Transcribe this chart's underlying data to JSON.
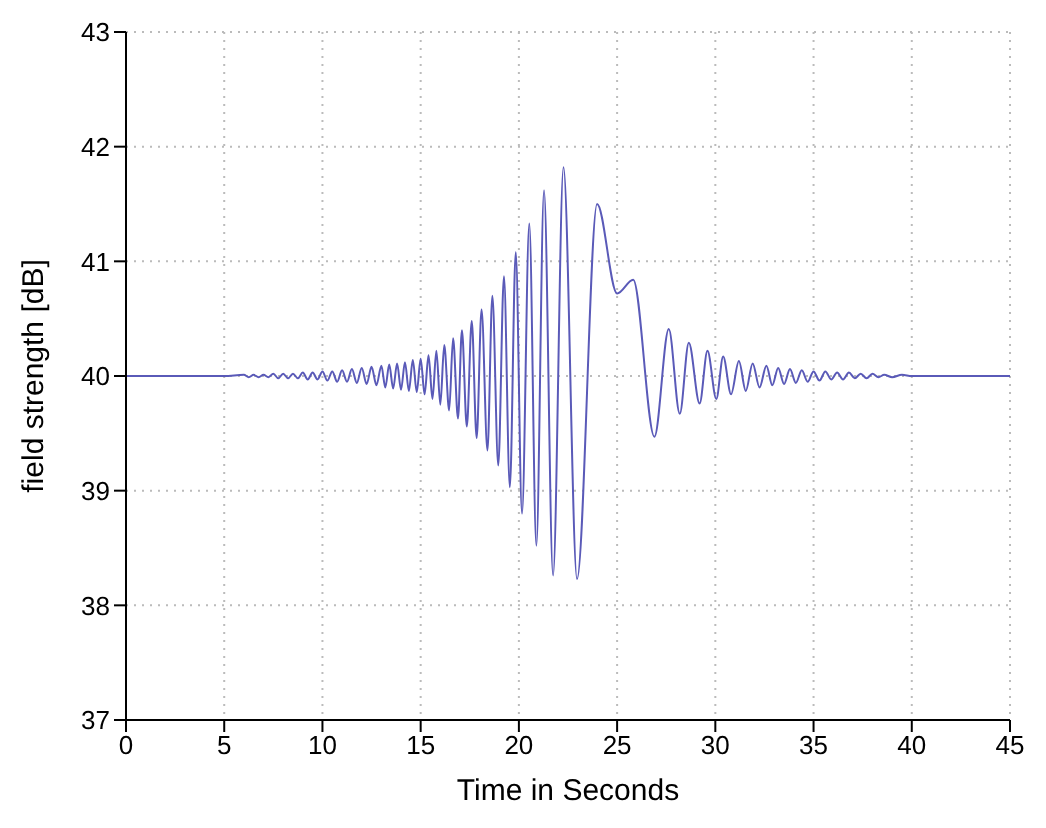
{
  "chart_data": {
    "type": "line",
    "xlabel": "Time in Seconds",
    "ylabel": "field strength  [dB]",
    "xlim": [
      0,
      45
    ],
    "xticks": [
      0,
      5,
      10,
      15,
      20,
      25,
      30,
      35,
      40,
      45
    ],
    "ylim": [
      37,
      43
    ],
    "yticks": [
      37,
      38,
      39,
      40,
      41,
      42,
      43
    ],
    "grid": true,
    "marker": "none",
    "line_style": "solid",
    "x": [
      0,
      5,
      6,
      6.25,
      6.5,
      6.75,
      7,
      7.25,
      7.5,
      7.75,
      8,
      8.25,
      8.5,
      8.75,
      9,
      9.25,
      9.5,
      9.75,
      10,
      10.25,
      10.5,
      10.75,
      11,
      11.25,
      11.5,
      11.75,
      12,
      12.25,
      12.5,
      12.75,
      13,
      13.2,
      13.4,
      13.6,
      13.8,
      14,
      14.2,
      14.4,
      14.6,
      14.8,
      15,
      15.2,
      15.4,
      15.6,
      15.8,
      16,
      16.2,
      16.45,
      16.65,
      16.9,
      17.1,
      17.35,
      17.6,
      17.85,
      18.1,
      18.4,
      18.65,
      18.95,
      19.24,
      19.54,
      19.84,
      20.16,
      20.53,
      20.89,
      21.28,
      21.74,
      22.27,
      22.96,
      23.98,
      25,
      25.82,
      26.9,
      27.63,
      28.19,
      28.65,
      29.2,
      29.6,
      30.05,
      30.4,
      30.8,
      31.2,
      31.55,
      31.9,
      32.25,
      32.6,
      32.9,
      33.2,
      33.5,
      33.8,
      34.1,
      34.4,
      34.7,
      35,
      35.3,
      35.6,
      35.9,
      36.2,
      36.5,
      36.8,
      37.1,
      37.4,
      37.7,
      38,
      38.3,
      38.6,
      39,
      39.5,
      40,
      45
    ],
    "series": [
      {
        "color": "#5a5ab8",
        "values": [
          40,
          40,
          40.01,
          39.99,
          40.01,
          39.99,
          40.01,
          39.99,
          40.02,
          39.98,
          40.02,
          39.98,
          40.02,
          39.98,
          40.03,
          39.97,
          40.03,
          39.97,
          40.04,
          39.96,
          40.04,
          39.95,
          40.05,
          39.95,
          40.06,
          39.94,
          40.07,
          39.93,
          40.08,
          39.92,
          40.09,
          39.9,
          40.1,
          39.89,
          40.11,
          39.88,
          40.12,
          39.87,
          40.14,
          39.86,
          40.15,
          39.84,
          40.18,
          39.8,
          40.22,
          39.75,
          40.27,
          39.7,
          40.33,
          39.63,
          40.4,
          39.56,
          40.48,
          39.46,
          40.58,
          39.35,
          40.7,
          39.22,
          40.87,
          39.03,
          41.08,
          38.8,
          41.33,
          38.52,
          41.62,
          38.26,
          41.82,
          38.23,
          41.5,
          40.72,
          40.84,
          39.47,
          40.41,
          39.67,
          40.29,
          39.76,
          40.22,
          39.8,
          40.17,
          39.84,
          40.13,
          39.87,
          40.11,
          39.9,
          40.09,
          39.92,
          40.07,
          39.93,
          40.06,
          39.94,
          40.05,
          39.95,
          40.04,
          39.96,
          40.04,
          39.97,
          40.03,
          39.97,
          40.03,
          39.98,
          40.02,
          39.98,
          40.02,
          39.99,
          40.01,
          39.99,
          40.01,
          40,
          40
        ]
      }
    ]
  }
}
